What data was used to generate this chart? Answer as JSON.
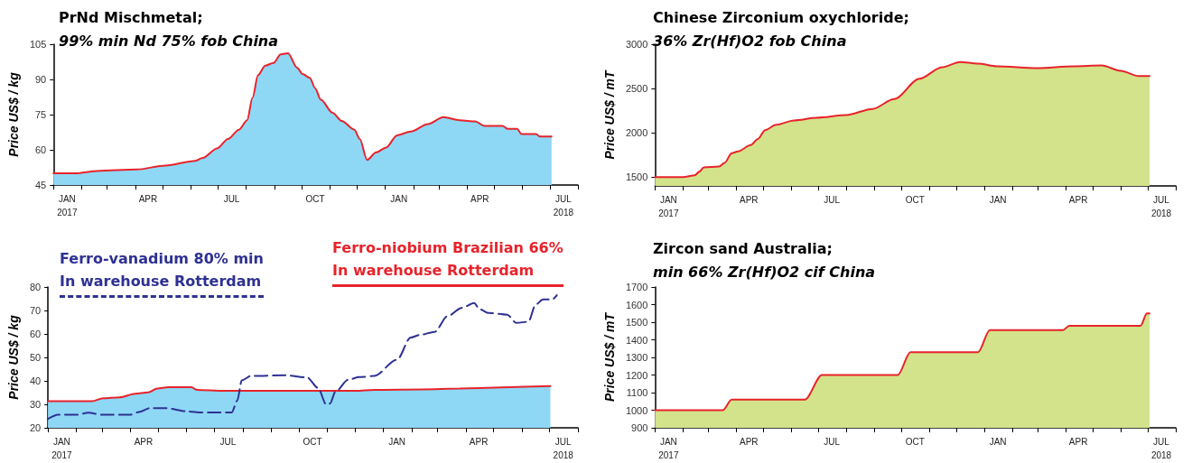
{
  "chart_data": [
    {
      "type": "area",
      "title": "PrNd Mischmetal;",
      "subtitle": "99% min Nd 75% fob China",
      "ylabel": "Price US$ / kg",
      "xlim": [
        "2017-01-01",
        "2018-08-01"
      ],
      "xticks": [
        {
          "value": "2017-01-01",
          "label": null
        },
        {
          "value": "2017-02-01",
          "label": null
        },
        {
          "value": "2017-03-01",
          "label": null
        },
        {
          "value": "2017-04-01",
          "label": null
        },
        {
          "value": "2017-05-01",
          "label": null
        },
        {
          "value": "2017-06-01",
          "label": null
        },
        {
          "value": "2017-07-01",
          "label": null
        },
        {
          "value": "2017-08-01",
          "label": null
        },
        {
          "value": "2017-09-01",
          "label": null
        },
        {
          "value": "2017-10-01",
          "label": null
        },
        {
          "value": "2017-11-01",
          "label": null
        },
        {
          "value": "2017-12-01",
          "label": null
        },
        {
          "value": "2018-01-01",
          "label": null
        },
        {
          "value": "2018-02-01",
          "label": null
        },
        {
          "value": "2018-03-01",
          "label": null
        },
        {
          "value": "2018-04-01",
          "label": null
        },
        {
          "value": "2018-05-01",
          "label": null
        },
        {
          "value": "2018-06-01",
          "label": null
        },
        {
          "value": "2018-07-01",
          "label": null
        },
        {
          "value": "2018-08-01",
          "label": null
        },
        {
          "value": "2017-01-16",
          "label": "JAN\n2017"
        },
        {
          "value": "2017-04-15",
          "label": "APR"
        },
        {
          "value": "2017-07-16",
          "label": "JUL"
        },
        {
          "value": "2017-10-16",
          "label": "OCT"
        },
        {
          "value": "2018-01-16",
          "label": "JAN"
        },
        {
          "value": "2018-04-15",
          "label": "APR"
        },
        {
          "value": "2018-07-16",
          "label": "JUL\n2018"
        }
      ],
      "ylim": [
        45,
        105
      ],
      "yticks": [
        45,
        60,
        75,
        90,
        105
      ],
      "series": [
        {
          "color": "#8ed8f6",
          "x": [
            "2017-01-01",
            "2017-01-25",
            "2017-02-18",
            "2017-04-02",
            "2017-05-04",
            "2017-06-06",
            "2017-06-14",
            "2017-06-30",
            "2017-07-12",
            "2017-07-24",
            "2017-08-02",
            "2017-08-08",
            "2017-08-14",
            "2017-08-22",
            "2017-08-31",
            "2017-09-08",
            "2017-09-16",
            "2017-09-26",
            "2017-10-02",
            "2017-10-10",
            "2017-10-16",
            "2017-10-22",
            "2017-11-04",
            "2017-11-14",
            "2017-11-28",
            "2017-12-04",
            "2017-12-12",
            "2017-12-22",
            "2018-01-02",
            "2018-01-14",
            "2018-01-29",
            "2018-02-17",
            "2018-03-06",
            "2018-03-24",
            "2018-04-10",
            "2018-04-20",
            "2018-05-10",
            "2018-05-16",
            "2018-05-26",
            "2018-05-31",
            "2018-06-16",
            "2018-06-20",
            "2018-07-03"
          ],
          "values": [
            50,
            50,
            51,
            51.6,
            53.3,
            55.3,
            56.5,
            60.6,
            64.6,
            68.6,
            72.6,
            82.2,
            91.8,
            95.9,
            97,
            100.7,
            101.2,
            95,
            92.3,
            90.7,
            86.2,
            81.4,
            75.8,
            72.3,
            68.6,
            64.6,
            55.7,
            58.9,
            61,
            66.2,
            67.8,
            71,
            73.9,
            72.6,
            72.1,
            70.2,
            70.2,
            68.9,
            68.9,
            66.7,
            66.7,
            65.7,
            65.7
          ]
        },
        {
          "type": "line",
          "color": "#e8232b",
          "x": [
            "2017-01-01",
            "2017-01-25",
            "2017-02-18",
            "2017-04-02",
            "2017-05-04",
            "2017-06-06",
            "2017-06-14",
            "2017-06-30",
            "2017-07-12",
            "2017-07-24",
            "2017-08-02",
            "2017-08-08",
            "2017-08-14",
            "2017-08-22",
            "2017-08-31",
            "2017-09-08",
            "2017-09-16",
            "2017-09-26",
            "2017-10-02",
            "2017-10-10",
            "2017-10-16",
            "2017-10-22",
            "2017-11-04",
            "2017-11-14",
            "2017-11-28",
            "2017-12-04",
            "2017-12-12",
            "2017-12-22",
            "2018-01-02",
            "2018-01-14",
            "2018-01-29",
            "2018-02-17",
            "2018-03-06",
            "2018-03-24",
            "2018-04-10",
            "2018-04-20",
            "2018-05-10",
            "2018-05-16",
            "2018-05-26",
            "2018-05-31",
            "2018-06-16",
            "2018-06-20",
            "2018-07-03"
          ],
          "values": [
            50,
            50,
            51,
            51.6,
            53.3,
            55.3,
            56.5,
            60.6,
            64.6,
            68.6,
            72.6,
            82.2,
            91.8,
            95.9,
            97,
            100.7,
            101.2,
            95,
            92.3,
            90.7,
            86.2,
            81.4,
            75.8,
            72.3,
            68.6,
            64.6,
            55.7,
            58.9,
            61,
            66.2,
            67.8,
            71,
            73.9,
            72.6,
            72.1,
            70.2,
            70.2,
            68.9,
            68.9,
            66.7,
            66.7,
            65.7,
            65.7
          ]
        }
      ]
    },
    {
      "type": "area",
      "title": "Chinese Zirconium oxychloride;",
      "subtitle": "36% Zr(Hf)O2 fob China",
      "ylabel": "Price US$ / mT",
      "xlim": [
        "2017-01-01",
        "2018-08-01"
      ],
      "xticks": [
        {
          "value": "2017-01-01",
          "label": null
        },
        {
          "value": "2017-02-01",
          "label": null
        },
        {
          "value": "2017-03-01",
          "label": null
        },
        {
          "value": "2017-04-01",
          "label": null
        },
        {
          "value": "2017-05-01",
          "label": null
        },
        {
          "value": "2017-06-01",
          "label": null
        },
        {
          "value": "2017-07-01",
          "label": null
        },
        {
          "value": "2017-08-01",
          "label": null
        },
        {
          "value": "2017-09-01",
          "label": null
        },
        {
          "value": "2017-10-01",
          "label": null
        },
        {
          "value": "2017-11-01",
          "label": null
        },
        {
          "value": "2017-12-01",
          "label": null
        },
        {
          "value": "2018-01-01",
          "label": null
        },
        {
          "value": "2018-02-01",
          "label": null
        },
        {
          "value": "2018-03-01",
          "label": null
        },
        {
          "value": "2018-04-01",
          "label": null
        },
        {
          "value": "2018-05-01",
          "label": null
        },
        {
          "value": "2018-06-01",
          "label": null
        },
        {
          "value": "2018-07-01",
          "label": null
        },
        {
          "value": "2018-08-01",
          "label": null
        },
        {
          "value": "2017-01-16",
          "label": "JAN\n2017"
        },
        {
          "value": "2017-04-15",
          "label": "APR"
        },
        {
          "value": "2017-07-16",
          "label": "JUL"
        },
        {
          "value": "2017-10-16",
          "label": "OCT"
        },
        {
          "value": "2018-01-16",
          "label": "JAN"
        },
        {
          "value": "2018-04-15",
          "label": "APR"
        },
        {
          "value": "2018-07-16",
          "label": "JUL\n2018"
        }
      ],
      "ylim": [
        1400,
        3000
      ],
      "yticks": [
        1500,
        2000,
        2500,
        3000
      ],
      "series": [
        {
          "color": "#d3e38b",
          "x": [
            "2017-01-01",
            "2017-02-01",
            "2017-02-14",
            "2017-02-19",
            "2017-02-24",
            "2017-03-13",
            "2017-03-19",
            "2017-03-27",
            "2017-04-03",
            "2017-04-17",
            "2017-04-25",
            "2017-05-03",
            "2017-05-15",
            "2017-06-04",
            "2017-06-29",
            "2017-08-01",
            "2017-08-30",
            "2017-09-23",
            "2017-10-21",
            "2017-11-15",
            "2017-12-05",
            "2017-12-25",
            "2018-01-15",
            "2018-03-01",
            "2018-04-09",
            "2018-05-11",
            "2018-06-01",
            "2018-06-21",
            "2018-07-03"
          ],
          "values": [
            1500,
            1500,
            1520,
            1560,
            1610,
            1620,
            1660,
            1770,
            1790,
            1860,
            1930,
            2030,
            2090,
            2140,
            2170,
            2200,
            2270,
            2380,
            2610,
            2740,
            2800,
            2780,
            2750,
            2730,
            2750,
            2760,
            2700,
            2640,
            2640
          ]
        },
        {
          "type": "line",
          "color": "#e8232b",
          "x": [
            "2017-01-01",
            "2017-02-01",
            "2017-02-14",
            "2017-02-19",
            "2017-02-24",
            "2017-03-13",
            "2017-03-19",
            "2017-03-27",
            "2017-04-03",
            "2017-04-17",
            "2017-04-25",
            "2017-05-03",
            "2017-05-15",
            "2017-06-04",
            "2017-06-29",
            "2017-08-01",
            "2017-08-30",
            "2017-09-23",
            "2017-10-21",
            "2017-11-15",
            "2017-12-05",
            "2017-12-25",
            "2018-01-15",
            "2018-03-01",
            "2018-04-09",
            "2018-05-11",
            "2018-06-01",
            "2018-06-21",
            "2018-07-03"
          ],
          "values": [
            1500,
            1500,
            1520,
            1560,
            1610,
            1620,
            1660,
            1770,
            1790,
            1860,
            1930,
            2030,
            2090,
            2140,
            2170,
            2200,
            2270,
            2380,
            2610,
            2740,
            2800,
            2780,
            2750,
            2730,
            2750,
            2760,
            2700,
            2640,
            2640
          ]
        }
      ]
    },
    {
      "type": "area",
      "legend": "top",
      "ylabel": "Price US$ / kg",
      "xlim": [
        "2017-01-01",
        "2018-08-01"
      ],
      "xticks": [
        {
          "value": "2017-01-01",
          "label": null
        },
        {
          "value": "2017-02-01",
          "label": null
        },
        {
          "value": "2017-03-01",
          "label": null
        },
        {
          "value": "2017-04-01",
          "label": null
        },
        {
          "value": "2017-05-01",
          "label": null
        },
        {
          "value": "2017-06-01",
          "label": null
        },
        {
          "value": "2017-07-01",
          "label": null
        },
        {
          "value": "2017-08-01",
          "label": null
        },
        {
          "value": "2017-09-01",
          "label": null
        },
        {
          "value": "2017-10-01",
          "label": null
        },
        {
          "value": "2017-11-01",
          "label": null
        },
        {
          "value": "2017-12-01",
          "label": null
        },
        {
          "value": "2018-01-01",
          "label": null
        },
        {
          "value": "2018-02-01",
          "label": null
        },
        {
          "value": "2018-03-01",
          "label": null
        },
        {
          "value": "2018-04-01",
          "label": null
        },
        {
          "value": "2018-05-01",
          "label": null
        },
        {
          "value": "2018-06-01",
          "label": null
        },
        {
          "value": "2018-07-01",
          "label": null
        },
        {
          "value": "2018-08-01",
          "label": null
        },
        {
          "value": "2017-01-16",
          "label": "JAN\n2017"
        },
        {
          "value": "2017-04-15",
          "label": "APR"
        },
        {
          "value": "2017-07-16",
          "label": "JUL"
        },
        {
          "value": "2017-10-16",
          "label": "OCT"
        },
        {
          "value": "2018-01-16",
          "label": "JAN"
        },
        {
          "value": "2018-04-15",
          "label": "APR"
        },
        {
          "value": "2018-07-16",
          "label": "JUL\n2018"
        }
      ],
      "ylim": [
        20,
        80
      ],
      "yticks": [
        20,
        30,
        40,
        50,
        60,
        70,
        80
      ],
      "series": [
        {
          "color": "#8ed8f6",
          "x": [
            "2017-01-01",
            "2017-02-18",
            "2017-03-02",
            "2017-03-20",
            "2017-04-06",
            "2017-04-20",
            "2017-04-30",
            "2017-05-12",
            "2017-06-06",
            "2017-06-12",
            "2017-07-12",
            "2017-12-02",
            "2017-12-22",
            "2018-07-02"
          ],
          "values": [
            31.3,
            31.3,
            32.6,
            33,
            34.5,
            35.1,
            36.7,
            37.3,
            37.3,
            36.2,
            35.8,
            35.8,
            36.2,
            37.8
          ]
        },
        {
          "name": "Ferro-niobium Brazilian 66%\nIn warehouse Rotterdam",
          "type": "line",
          "color": "#e8232b",
          "x": [
            "2017-01-01",
            "2017-02-18",
            "2017-03-02",
            "2017-03-20",
            "2017-04-06",
            "2017-04-20",
            "2017-04-30",
            "2017-05-12",
            "2017-06-06",
            "2017-06-12",
            "2017-07-12",
            "2017-12-02",
            "2017-12-22",
            "2018-07-02"
          ],
          "values": [
            31.3,
            31.3,
            32.6,
            33,
            34.5,
            35.1,
            36.7,
            37.3,
            37.3,
            36.2,
            35.8,
            35.8,
            36.2,
            37.8
          ]
        },
        {
          "name": "Ferro-vanadium 80% min\nIn warehouse Rotterdam",
          "type": "line",
          "line_style": "dashed",
          "color": "#2e3192",
          "x": [
            "2017-01-01",
            "2017-01-12",
            "2017-02-02",
            "2017-02-14",
            "2017-03-01",
            "2017-04-01",
            "2017-04-10",
            "2017-04-22",
            "2017-05-08",
            "2017-06-02",
            "2017-06-18",
            "2017-07-20",
            "2017-07-26",
            "2017-07-31",
            "2017-08-10",
            "2017-09-16",
            "2017-10-10",
            "2017-10-22",
            "2017-10-31",
            "2017-11-04",
            "2017-11-10",
            "2017-11-24",
            "2017-12-06",
            "2017-12-22",
            "2018-01-16",
            "2018-01-31",
            "2018-02-10",
            "2018-02-26",
            "2018-03-12",
            "2018-03-28",
            "2018-04-10",
            "2018-04-16",
            "2018-04-26",
            "2018-05-16",
            "2018-05-26",
            "2018-06-08",
            "2018-06-16",
            "2018-06-24",
            "2018-07-04",
            "2018-07-09"
          ],
          "values": [
            23.8,
            25.6,
            25.6,
            26.4,
            25.6,
            25.6,
            26.7,
            28.4,
            28.4,
            27,
            26.5,
            26.5,
            31.5,
            40.2,
            42.1,
            42.4,
            41.5,
            37,
            29.9,
            30.3,
            35.4,
            40.5,
            41.6,
            42.1,
            49,
            58.5,
            59.6,
            60.9,
            67.6,
            71.2,
            73.2,
            70.5,
            68.9,
            68.2,
            64.7,
            65.2,
            72.5,
            74.7,
            74.7,
            76.5
          ]
        }
      ]
    },
    {
      "type": "area",
      "title": "Zircon sand Australia;",
      "subtitle": "min 66% Zr(Hf)O2 cif China",
      "ylabel": "Price US$ / mT",
      "xlim": [
        "2017-01-01",
        "2018-08-01"
      ],
      "xticks": [
        {
          "value": "2017-01-01",
          "label": null
        },
        {
          "value": "2017-02-01",
          "label": null
        },
        {
          "value": "2017-03-01",
          "label": null
        },
        {
          "value": "2017-04-01",
          "label": null
        },
        {
          "value": "2017-05-01",
          "label": null
        },
        {
          "value": "2017-06-01",
          "label": null
        },
        {
          "value": "2017-07-01",
          "label": null
        },
        {
          "value": "2017-08-01",
          "label": null
        },
        {
          "value": "2017-09-01",
          "label": null
        },
        {
          "value": "2017-10-01",
          "label": null
        },
        {
          "value": "2017-11-01",
          "label": null
        },
        {
          "value": "2017-12-01",
          "label": null
        },
        {
          "value": "2018-01-01",
          "label": null
        },
        {
          "value": "2018-02-01",
          "label": null
        },
        {
          "value": "2018-03-01",
          "label": null
        },
        {
          "value": "2018-04-01",
          "label": null
        },
        {
          "value": "2018-05-01",
          "label": null
        },
        {
          "value": "2018-06-01",
          "label": null
        },
        {
          "value": "2018-07-01",
          "label": null
        },
        {
          "value": "2018-08-01",
          "label": null
        },
        {
          "value": "2017-01-16",
          "label": "JAN\n2017"
        },
        {
          "value": "2017-04-15",
          "label": "APR"
        },
        {
          "value": "2017-07-16",
          "label": "JUL"
        },
        {
          "value": "2017-10-16",
          "label": "OCT"
        },
        {
          "value": "2018-01-16",
          "label": "JAN"
        },
        {
          "value": "2018-04-15",
          "label": "APR"
        },
        {
          "value": "2018-07-16",
          "label": "JUL\n2018"
        }
      ],
      "ylim": [
        900,
        1700
      ],
      "yticks": [
        900,
        1000,
        1100,
        1200,
        1300,
        1400,
        1500,
        1600,
        1700
      ],
      "series": [
        {
          "color": "#d3e38b",
          "x": [
            "2017-01-01",
            "2017-03-17",
            "2017-03-27",
            "2017-06-16",
            "2017-07-05",
            "2017-09-27",
            "2017-10-11",
            "2017-12-25",
            "2018-01-07",
            "2018-03-29",
            "2018-04-05",
            "2018-06-23",
            "2018-06-30",
            "2018-07-03"
          ],
          "values": [
            1000,
            1000,
            1060,
            1060,
            1200,
            1200,
            1330,
            1330,
            1455,
            1455,
            1480,
            1480,
            1550,
            1550
          ]
        },
        {
          "type": "line",
          "color": "#e8232b",
          "x": [
            "2017-01-01",
            "2017-03-17",
            "2017-03-27",
            "2017-06-16",
            "2017-07-05",
            "2017-09-27",
            "2017-10-11",
            "2017-12-25",
            "2018-01-07",
            "2018-03-29",
            "2018-04-05",
            "2018-06-23",
            "2018-06-30",
            "2018-07-03"
          ],
          "values": [
            1000,
            1000,
            1060,
            1060,
            1200,
            1200,
            1330,
            1330,
            1455,
            1455,
            1480,
            1480,
            1550,
            1550
          ]
        }
      ]
    }
  ]
}
